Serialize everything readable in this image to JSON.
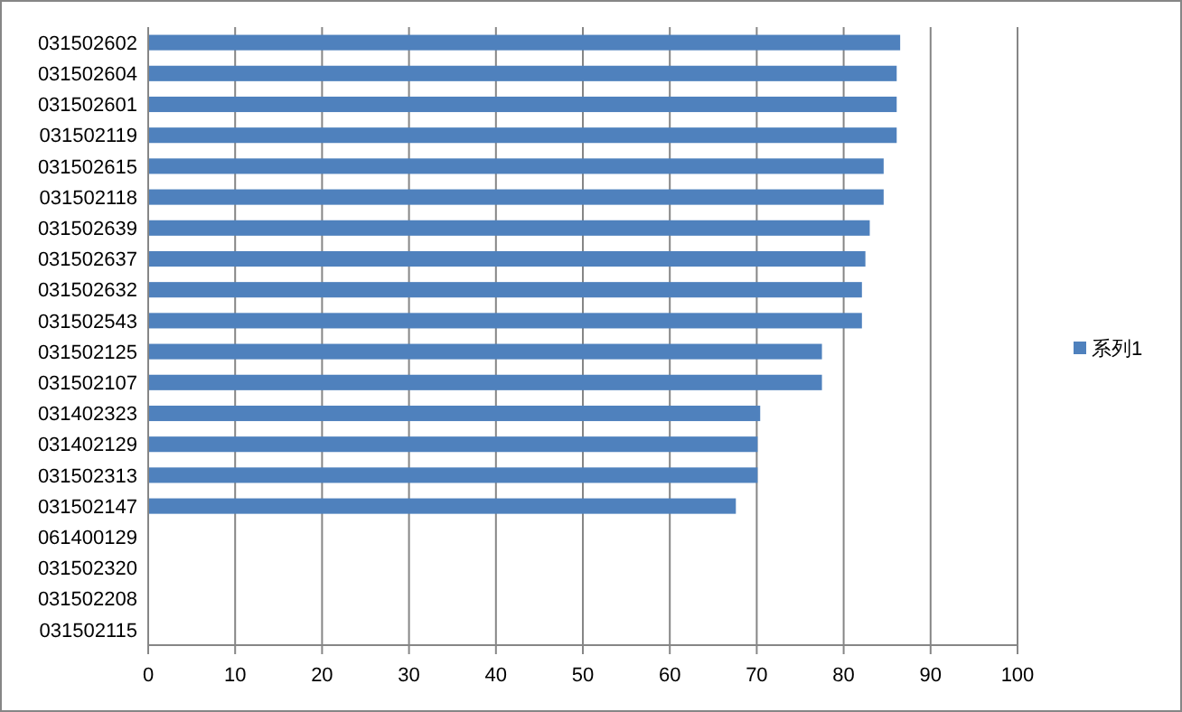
{
  "chart_data": {
    "type": "bar",
    "orientation": "horizontal",
    "categories": [
      "031502602",
      "031502604",
      "031502601",
      "031502119",
      "031502615",
      "031502118",
      "031502639",
      "031502637",
      "031502632",
      "031502543",
      "031502125",
      "031502107",
      "031402323",
      "031402129",
      "031502313",
      "031502147",
      "061400129",
      "031502320",
      "031502208",
      "031502115"
    ],
    "series": [
      {
        "name": "系列1",
        "color": "#4f81bd",
        "values": [
          86.5,
          86.1,
          86.1,
          86.1,
          84.6,
          84.6,
          83,
          82.5,
          82.1,
          82.1,
          77.5,
          77.5,
          70.4,
          70.1,
          70.1,
          67.6,
          null,
          null,
          null,
          null
        ]
      }
    ],
    "xlim": [
      0,
      100
    ],
    "xticks": [
      0,
      10,
      20,
      30,
      40,
      50,
      60,
      70,
      80,
      90,
      100
    ],
    "grid": "x",
    "legend": "right"
  }
}
